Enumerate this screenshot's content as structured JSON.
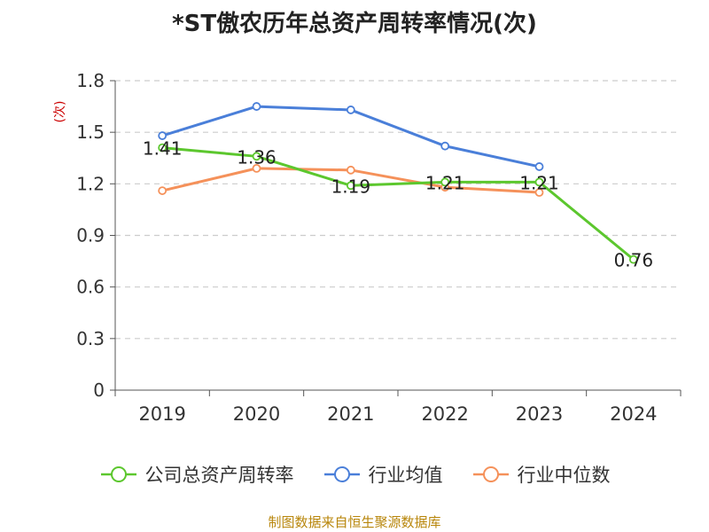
{
  "header": {
    "title": "*ST傲农历年总资产周转率情况(次)"
  },
  "footer": {
    "source": "制图数据来自恒生聚源数据库"
  },
  "colors": {
    "series_0": "#5cc72e",
    "series_1": "#4a7fd9",
    "series_2": "#f5915a"
  },
  "chart_data": {
    "type": "line",
    "title": "*ST傲农历年总资产周转率情况(次)",
    "ylabel": "(次)",
    "xlabel": "",
    "categories": [
      "2019",
      "2020",
      "2021",
      "2022",
      "2023",
      "2024"
    ],
    "ylim": [
      0,
      1.8
    ],
    "yticks": [
      "0",
      "0.3",
      "0.6",
      "0.9",
      "1.2",
      "1.5",
      "1.8"
    ],
    "grid": true,
    "legend_position": "bottom",
    "series": [
      {
        "name": "公司总资产周转率",
        "values": [
          1.41,
          1.36,
          1.19,
          1.21,
          1.21,
          0.76
        ],
        "labels": [
          "1.41",
          "1.36",
          "1.19",
          "1.21",
          "1.21",
          "0.76"
        ]
      },
      {
        "name": "行业均值",
        "values": [
          1.48,
          1.65,
          1.63,
          1.42,
          1.3,
          null
        ]
      },
      {
        "name": "行业中位数",
        "values": [
          1.16,
          1.29,
          1.28,
          1.18,
          1.15,
          null
        ]
      }
    ]
  }
}
